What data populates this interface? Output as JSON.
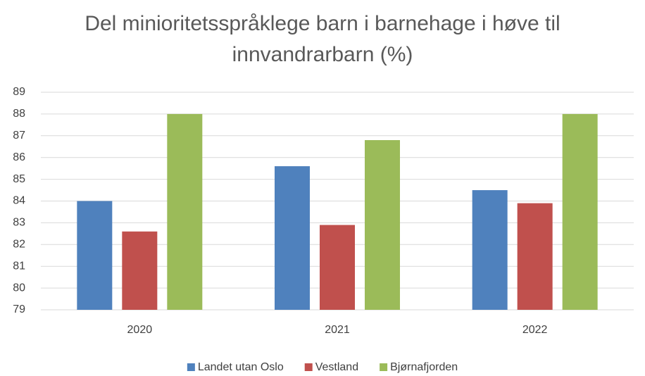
{
  "chart_data": {
    "type": "bar",
    "title": "Del minioritetsspråklege barn i barnehage i høve til innvandrarbarn (%)",
    "categories": [
      "2020",
      "2021",
      "2022"
    ],
    "series": [
      {
        "name": "Landet utan Oslo",
        "color": "#4f81bd",
        "values": [
          84,
          85.6,
          84.5
        ]
      },
      {
        "name": "Vestland",
        "color": "#c0504d",
        "values": [
          82.6,
          82.9,
          83.9
        ]
      },
      {
        "name": "Bjørnafjorden",
        "color": "#9bbb59",
        "values": [
          88,
          86.8,
          88
        ]
      }
    ],
    "ylim": [
      79,
      89
    ],
    "yticks": [
      79,
      80,
      81,
      82,
      83,
      84,
      85,
      86,
      87,
      88,
      89
    ],
    "grid": true,
    "legend": "bottom"
  }
}
